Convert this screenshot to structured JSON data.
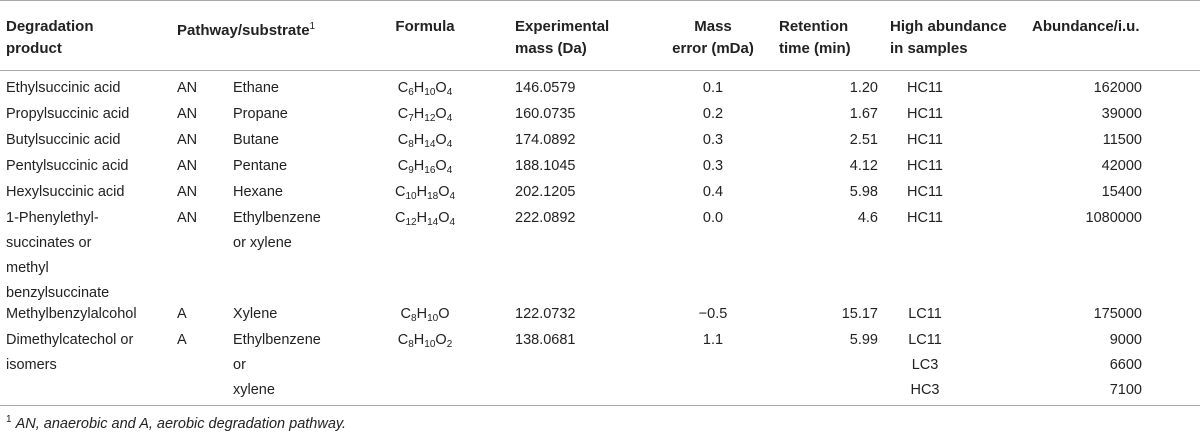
{
  "table": {
    "headers": {
      "product": [
        "Degradation",
        "product"
      ],
      "pathway": "Pathway/substrate",
      "pathway_sup": "1",
      "formula": "Formula",
      "mass": [
        "Experimental",
        "mass (Da)"
      ],
      "error": [
        "Mass",
        "error (mDa)"
      ],
      "retention": [
        "Retention",
        "time (min)"
      ],
      "abundance_samples": [
        "High abundance",
        "in samples"
      ],
      "abundance": "Abundance/i.u."
    },
    "rows": [
      {
        "product": [
          "Ethylsuccinic acid"
        ],
        "pathway": "AN",
        "substrate": [
          "Ethane"
        ],
        "formula": [
          {
            "el": "C",
            "n": "6"
          },
          {
            "el": "H",
            "n": "10"
          },
          {
            "el": "O",
            "n": "4"
          }
        ],
        "mass": "146.0579",
        "error": "0.1",
        "retention": "1.20",
        "samples": [
          "HC11"
        ],
        "abundance": [
          "162000"
        ]
      },
      {
        "product": [
          "Propylsuccinic acid"
        ],
        "pathway": "AN",
        "substrate": [
          "Propane"
        ],
        "formula": [
          {
            "el": "C",
            "n": "7"
          },
          {
            "el": "H",
            "n": "12"
          },
          {
            "el": "O",
            "n": "4"
          }
        ],
        "mass": "160.0735",
        "error": "0.2",
        "retention": "1.67",
        "samples": [
          "HC11"
        ],
        "abundance": [
          "39000"
        ]
      },
      {
        "product": [
          "Butylsuccinic acid"
        ],
        "pathway": "AN",
        "substrate": [
          "Butane"
        ],
        "formula": [
          {
            "el": "C",
            "n": "8"
          },
          {
            "el": "H",
            "n": "14"
          },
          {
            "el": "O",
            "n": "4"
          }
        ],
        "mass": "174.0892",
        "error": "0.3",
        "retention": "2.51",
        "samples": [
          "HC11"
        ],
        "abundance": [
          "11500"
        ]
      },
      {
        "product": [
          "Pentylsuccinic acid"
        ],
        "pathway": "AN",
        "substrate": [
          "Pentane"
        ],
        "formula": [
          {
            "el": "C",
            "n": "9"
          },
          {
            "el": "H",
            "n": "16"
          },
          {
            "el": "O",
            "n": "4"
          }
        ],
        "mass": "188.1045",
        "error": "0.3",
        "retention": "4.12",
        "samples": [
          "HC11"
        ],
        "abundance": [
          "42000"
        ]
      },
      {
        "product": [
          "Hexylsuccinic acid"
        ],
        "pathway": "AN",
        "substrate": [
          "Hexane"
        ],
        "formula": [
          {
            "el": "C",
            "n": "10"
          },
          {
            "el": "H",
            "n": "18"
          },
          {
            "el": "O",
            "n": "4"
          }
        ],
        "mass": "202.1205",
        "error": "0.4",
        "retention": "5.98",
        "samples": [
          "HC11"
        ],
        "abundance": [
          "15400"
        ]
      },
      {
        "product": [
          "1-Phenylethyl-",
          "succinates or",
          "methyl",
          "benzylsuccinate"
        ],
        "pathway": "AN",
        "substrate": [
          "Ethylbenzene",
          "or xylene"
        ],
        "formula": [
          {
            "el": "C",
            "n": "12"
          },
          {
            "el": "H",
            "n": "14"
          },
          {
            "el": "O",
            "n": "4"
          }
        ],
        "mass": "222.0892",
        "error": "0.0",
        "retention": "4.6",
        "samples": [
          "HC11"
        ],
        "abundance": [
          "1080000"
        ]
      },
      {
        "product": [
          "Methylbenzylalcohol"
        ],
        "pathway": "A",
        "substrate": [
          "Xylene"
        ],
        "formula": [
          {
            "el": "C",
            "n": "8"
          },
          {
            "el": "H",
            "n": "10"
          },
          {
            "el": "O",
            "n": ""
          }
        ],
        "mass": "122.0732",
        "error": "−0.5",
        "retention": "15.17",
        "samples": [
          "LC11"
        ],
        "abundance": [
          "175000"
        ]
      },
      {
        "product": [
          "Dimethylcatechol or",
          "isomers"
        ],
        "pathway": "A",
        "substrate": [
          "Ethylbenzene",
          "or",
          "xylene"
        ],
        "formula": [
          {
            "el": "C",
            "n": "8"
          },
          {
            "el": "H",
            "n": "10"
          },
          {
            "el": "O",
            "n": "2"
          }
        ],
        "mass": "138.0681",
        "error": "1.1",
        "retention": "5.99",
        "samples": [
          "LC11",
          "LC3",
          "HC3"
        ],
        "abundance": [
          "9000",
          "6600",
          "7100"
        ]
      }
    ],
    "footnote": {
      "marker": "1",
      "text": "AN, anaerobic and A, aerobic degradation pathway."
    }
  }
}
